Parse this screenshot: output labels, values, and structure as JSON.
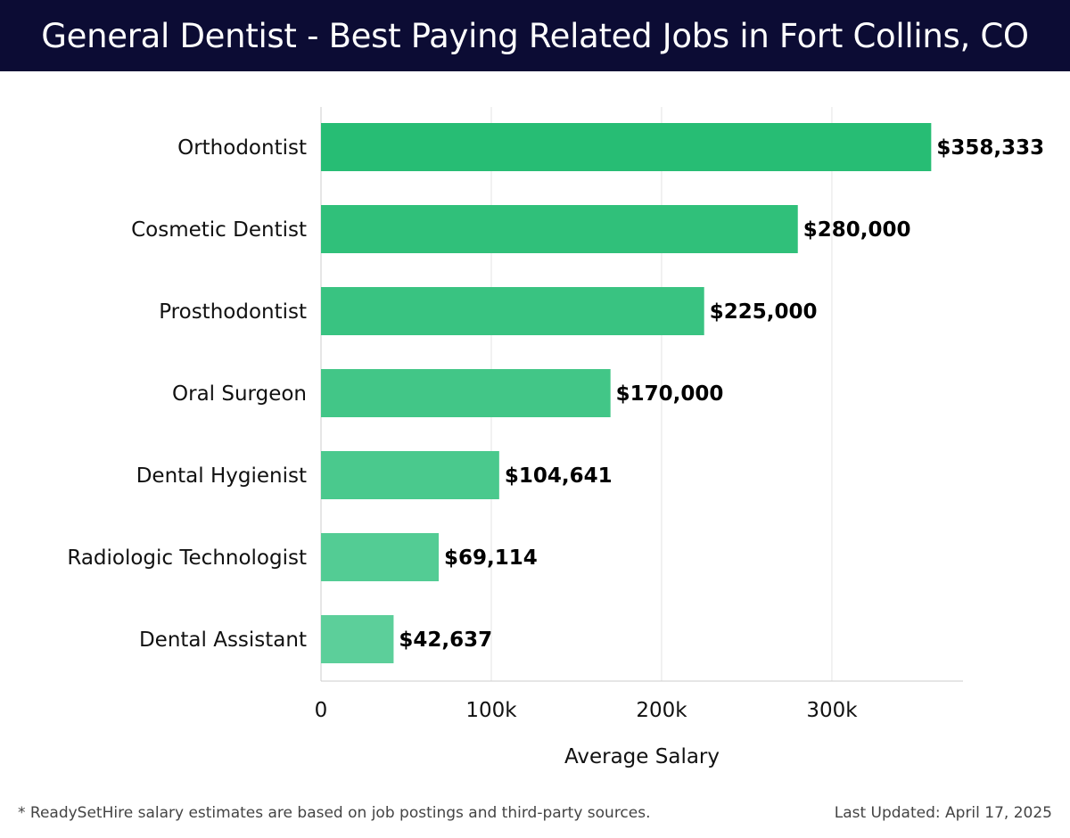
{
  "header": {
    "title": "General Dentist - Best Paying Related Jobs in Fort Collins, CO"
  },
  "footer": {
    "note": "* ReadySetHire salary estimates are based on job postings and third-party sources.",
    "updated": "Last Updated: April 17, 2025"
  },
  "colors": {
    "header_bg": "#0c0c34",
    "bar_top": "#27bd74",
    "bar_bottom": "#5ccf9a"
  },
  "chart_data": {
    "type": "bar",
    "orientation": "horizontal",
    "title": "General Dentist - Best Paying Related Jobs in Fort Collins, CO",
    "xlabel": "Average Salary",
    "ylabel": "",
    "xlim": [
      0,
      377000
    ],
    "grid": true,
    "categories": [
      "Orthodontist",
      "Cosmetic Dentist",
      "Prosthodontist",
      "Oral Surgeon",
      "Dental Hygienist",
      "Radiologic Technologist",
      "Dental Assistant"
    ],
    "values": [
      358333,
      280000,
      225000,
      170000,
      104641,
      69114,
      42637
    ],
    "value_labels": [
      "$358,333",
      "$280,000",
      "$225,000",
      "$170,000",
      "$104,641",
      "$69,114",
      "$42,637"
    ],
    "ticks": [
      0,
      100000,
      200000,
      300000
    ],
    "tick_labels": [
      "0",
      "100k",
      "200k",
      "300k"
    ]
  }
}
